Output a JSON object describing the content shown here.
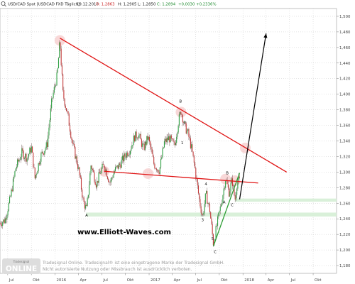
{
  "header": {
    "icon": "magnifier-icon",
    "symbol": "USD/CAD Spot [USDCAD FXD Täglich]",
    "date": "19.12.2017",
    "quote_text": "- O: 1,2863 H: 1,2905 L: 1,2850 C: 1,2894 +0,0030 +0,2336%",
    "o_label": "O: 1,2863",
    "h_label": "H: 1,2905",
    "l_label": "L: 1,2850",
    "c_label": "C: 1,2894",
    "chg_label": "+0,0030 +0,2336%"
  },
  "colors": {
    "up": "#2ea043",
    "down": "#c43b3b",
    "trend": "#e01414",
    "support": "#2f9e36",
    "zone": "#d7efd7",
    "marker": "#f2b8b8",
    "grid": "#c8c8c8",
    "candle": "#5a3a3a"
  },
  "watermark": "www.Elliott-Waves.com",
  "footer": {
    "logo_small": "Tradesignal",
    "logo_big": "ONLINE",
    "line1": "Tradesignal Online. Tradesignal® ist eine eingetragene Marke der Tradesignal GmbH.",
    "line2": "Nicht autorisierte Nutzung oder Missbrauch ist ausdrücklich verboten."
  },
  "chart_data": {
    "type": "candlestick",
    "x_tick_labels": [
      "Jul",
      "Okt",
      "2016",
      "Apr",
      "Jul",
      "Okt",
      "2017",
      "Apr",
      "Jul",
      "Okt",
      "2018",
      "Apr",
      "Jul",
      "Okt"
    ],
    "y_tick_labels": [
      "1,500",
      "1,480",
      "1,460",
      "1,440",
      "1,420",
      "1,400",
      "1,380",
      "1,360",
      "1,340",
      "1,320",
      "1,300",
      "1,280",
      "1,260",
      "1,240",
      "1,220",
      "1,200",
      "1,180"
    ],
    "ylim": [
      1.17,
      1.51
    ],
    "xlim": [
      "2015-06-01",
      "2018-12-31"
    ],
    "price_path": [
      [
        "2015-06-01",
        1.235
      ],
      [
        "2015-06-20",
        1.238
      ],
      [
        "2015-07-10",
        1.265
      ],
      [
        "2015-08-01",
        1.305
      ],
      [
        "2015-08-25",
        1.325
      ],
      [
        "2015-09-15",
        1.318
      ],
      [
        "2015-10-01",
        1.332
      ],
      [
        "2015-10-15",
        1.292
      ],
      [
        "2015-11-05",
        1.32
      ],
      [
        "2015-12-01",
        1.335
      ],
      [
        "2015-12-20",
        1.393
      ],
      [
        "2016-01-10",
        1.425
      ],
      [
        "2016-01-20",
        1.469
      ],
      [
        "2016-02-01",
        1.4
      ],
      [
        "2016-02-20",
        1.372
      ],
      [
        "2016-03-10",
        1.335
      ],
      [
        "2016-04-01",
        1.305
      ],
      [
        "2016-04-20",
        1.262
      ],
      [
        "2016-05-03",
        1.252
      ],
      [
        "2016-05-20",
        1.31
      ],
      [
        "2016-06-10",
        1.284
      ],
      [
        "2016-06-25",
        1.3
      ],
      [
        "2016-07-10",
        1.31
      ],
      [
        "2016-08-01",
        1.286
      ],
      [
        "2016-08-20",
        1.302
      ],
      [
        "2016-09-10",
        1.31
      ],
      [
        "2016-10-01",
        1.322
      ],
      [
        "2016-10-20",
        1.33
      ],
      [
        "2016-11-05",
        1.345
      ],
      [
        "2016-11-20",
        1.349
      ],
      [
        "2016-12-10",
        1.33
      ],
      [
        "2016-12-28",
        1.345
      ],
      [
        "2017-01-20",
        1.31
      ],
      [
        "2017-02-10",
        1.302
      ],
      [
        "2017-03-01",
        1.338
      ],
      [
        "2017-03-20",
        1.344
      ],
      [
        "2017-04-10",
        1.333
      ],
      [
        "2017-04-25",
        1.365
      ],
      [
        "2017-05-05",
        1.379
      ],
      [
        "2017-05-20",
        1.358
      ],
      [
        "2017-06-01",
        1.35
      ],
      [
        "2017-06-15",
        1.33
      ],
      [
        "2017-06-28",
        1.305
      ],
      [
        "2017-07-15",
        1.265
      ],
      [
        "2017-07-28",
        1.242
      ],
      [
        "2017-08-10",
        1.272
      ],
      [
        "2017-08-25",
        1.251
      ],
      [
        "2017-09-08",
        1.208
      ],
      [
        "2017-09-25",
        1.238
      ],
      [
        "2017-10-10",
        1.262
      ],
      [
        "2017-10-25",
        1.292
      ],
      [
        "2017-11-08",
        1.274
      ],
      [
        "2017-11-20",
        1.29
      ],
      [
        "2017-12-01",
        1.264
      ],
      [
        "2017-12-10",
        1.289
      ],
      [
        "2017-12-19",
        1.289
      ]
    ],
    "trend_lines": [
      {
        "name": "resistance",
        "from": [
          "2016-01-20",
          1.472
        ],
        "to": [
          "2018-06-20",
          1.3
        ],
        "color": "trend"
      },
      {
        "name": "neckline",
        "from": [
          "2016-07-10",
          1.301
        ],
        "to": [
          "2018-03-01",
          1.286
        ],
        "color": "trend"
      },
      {
        "name": "support",
        "from": [
          "2017-09-08",
          1.205
        ],
        "to": [
          "2017-12-19",
          1.299
        ],
        "color": "support"
      }
    ],
    "projection": {
      "from": [
        "2017-12-19",
        1.265
      ],
      "to": [
        "2018-04-01",
        1.478
      ]
    },
    "zones": [
      {
        "from": 1.262,
        "to": 1.266,
        "start": "2017-12-01"
      },
      {
        "from": 1.243,
        "to": 1.248,
        "start": "2016-05-01"
      }
    ],
    "markers": [
      [
        "2016-01-20",
        1.469
      ],
      [
        "2016-07-10",
        1.301
      ],
      [
        "2016-12-28",
        1.298
      ],
      [
        "2017-05-05",
        1.377
      ],
      [
        "2017-10-25",
        1.291
      ],
      [
        "2017-12-01",
        1.289
      ],
      [
        "2018-01-10",
        1.331
      ]
    ],
    "wave_labels": [
      {
        "label": "A",
        "date": "2016-05-03",
        "y": 1.243
      },
      {
        "label": "B",
        "date": "2017-05-03",
        "y": 1.389
      },
      {
        "label": "1",
        "date": "2017-05-10",
        "y": 1.336
      },
      {
        "label": "2",
        "date": "2017-05-20",
        "y": 1.362
      },
      {
        "label": "3",
        "date": "2017-07-28",
        "y": 1.237
      },
      {
        "label": "4",
        "date": "2017-08-10",
        "y": 1.283
      },
      {
        "label": "5",
        "date": "2017-09-05",
        "y": 1.213
      },
      {
        "label": "C",
        "date": "2017-09-15",
        "y": 1.196
      },
      {
        "label": "A",
        "date": "2017-10-20",
        "y": 1.26
      },
      {
        "label": "B",
        "date": "2017-11-01",
        "y": 1.297
      },
      {
        "label": "C",
        "date": "2017-11-20",
        "y": 1.256
      }
    ],
    "grid": true
  }
}
